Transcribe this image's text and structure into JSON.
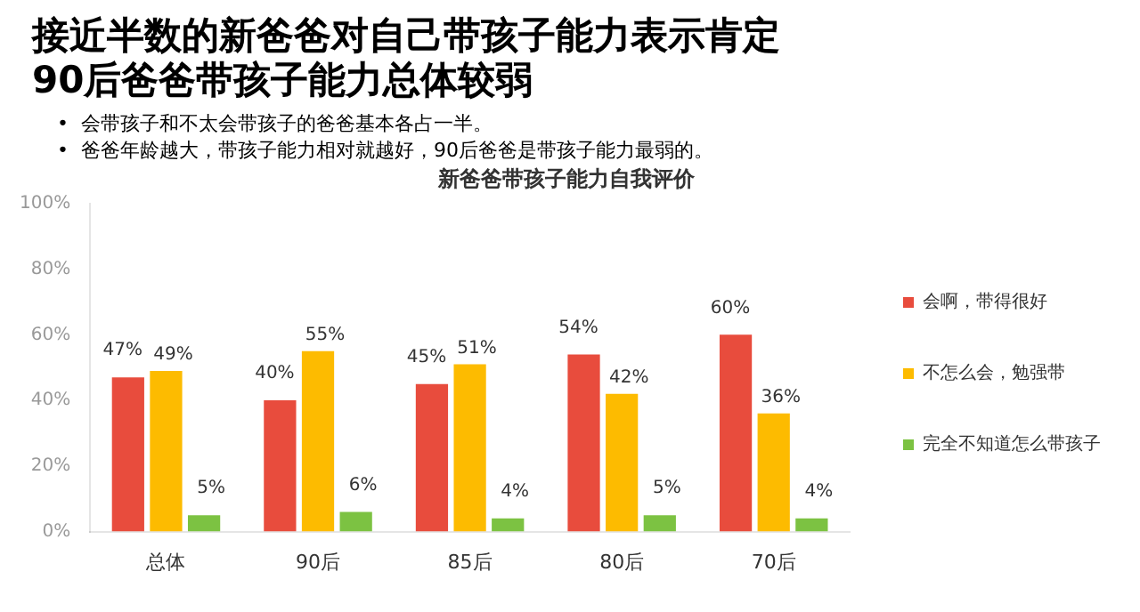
{
  "chart_data": {
    "type": "bar",
    "title": "新爸爸带孩子能力自我评价",
    "annotations": [
      "接近半数的新爸爸对自己带孩子能力表示肯定",
      "90后爸爸带孩子能力总体较弱",
      "•  会带孩子和不太会带孩子的爸爸基本各占一半。",
      "•  爸爸年龄越大，带孩子能力相对就越好，90后爸爸是带孩子能力最弱的。"
    ],
    "categories": [
      "总体",
      "90后",
      "85后",
      "80后",
      "70后"
    ],
    "series": [
      {
        "name": "会啊，带得很好",
        "color": "#e84c3d",
        "values": [
          47,
          40,
          45,
          54,
          60
        ],
        "value_labels": [
          "47%",
          "40%",
          "45%",
          "54%",
          "60%"
        ]
      },
      {
        "name": "不怎么会，勉强带",
        "color": "#fdbb00",
        "values": [
          49,
          55,
          51,
          42,
          36
        ],
        "value_labels": [
          "49%",
          "55%",
          "51%",
          "42%",
          "36%"
        ]
      },
      {
        "name": "完全不知道怎么带孩子",
        "color": "#7cc242",
        "values": [
          5,
          6,
          4,
          5,
          4
        ],
        "value_labels": [
          "5%",
          "6%",
          "4%",
          "5%",
          "4%"
        ]
      }
    ],
    "ylim": [
      0,
      100
    ],
    "yticks": [
      {
        "value": 0,
        "label": "0%"
      },
      {
        "value": 20,
        "label": "20%"
      },
      {
        "value": 40,
        "label": "40%"
      },
      {
        "value": 60,
        "label": "60%"
      },
      {
        "value": 80,
        "label": "80%"
      },
      {
        "value": 100,
        "label": "100%"
      }
    ],
    "grid": false,
    "legend": "right"
  }
}
